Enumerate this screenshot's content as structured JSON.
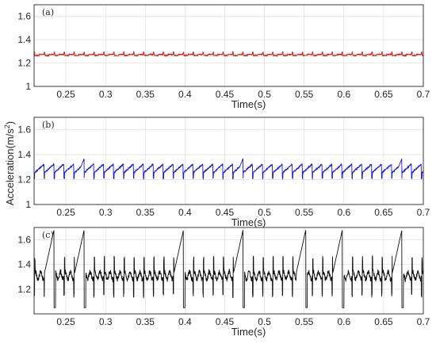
{
  "figure": {
    "ylabel": "Acceleration(m/s",
    "ylabel_sup": "2",
    "ylabel_close": ")"
  },
  "chart_data": [
    {
      "type": "line",
      "panel_label": "(a)",
      "xlabel": "Time(s)",
      "xlim": [
        0.21,
        0.7
      ],
      "ylim": [
        1.0,
        1.7
      ],
      "xticks": [
        "0.25",
        "0.3",
        "0.35",
        "0.4",
        "0.45",
        "0.5",
        "0.55",
        "0.6",
        "0.65",
        "0.7"
      ],
      "yticks": [
        "1",
        "1.2",
        "1.4",
        "1.6"
      ],
      "grid": true,
      "series": [
        {
          "color": "#cc2222",
          "waveform": "periodic-ripple",
          "mean": 1.27,
          "amplitude": 0.025,
          "period": 0.0125
        }
      ]
    },
    {
      "type": "line",
      "panel_label": "(b)",
      "xlabel": "Time(s)",
      "xlim": [
        0.21,
        0.7
      ],
      "ylim": [
        1.0,
        1.7
      ],
      "xticks": [
        "0.25",
        "0.3",
        "0.35",
        "0.4",
        "0.45",
        "0.5",
        "0.55",
        "0.6",
        "0.65",
        "0.7"
      ],
      "yticks": [
        "1",
        "1.2",
        "1.4",
        "1.6"
      ],
      "grid": true,
      "series": [
        {
          "color": "#1a1acc",
          "waveform": "periodic-sawtooth",
          "mean": 1.27,
          "amplitude": 0.06,
          "period": 0.0125,
          "spikes_at": [
            0.273,
            0.473,
            0.673
          ],
          "spike_peak": 1.37
        }
      ]
    },
    {
      "type": "line",
      "panel_label": "(c)",
      "xlabel": "Time(s)",
      "xlim": [
        0.21,
        0.7
      ],
      "ylim": [
        1.0,
        1.7
      ],
      "xticks": [
        "0.25",
        "0.3",
        "0.35",
        "0.4",
        "0.45",
        "0.5",
        "0.55",
        "0.6",
        "0.65",
        "0.7"
      ],
      "yticks": [
        "1.2",
        "1.4",
        "1.6"
      ],
      "grid": true,
      "series": [
        {
          "color": "#111111",
          "waveform": "periodic-impulsive",
          "mean": 1.33,
          "amplitude": 0.2,
          "period": 0.0125,
          "spikes_at": [
            0.235,
            0.273,
            0.398,
            0.473,
            0.552,
            0.598,
            0.673
          ],
          "spike_peak": 1.68
        }
      ]
    }
  ]
}
